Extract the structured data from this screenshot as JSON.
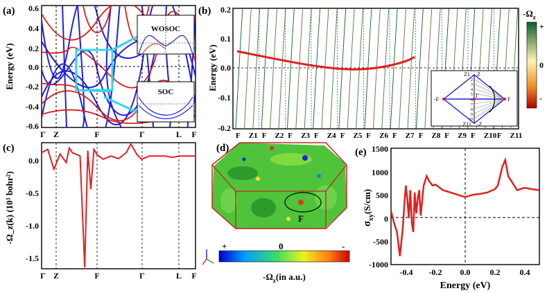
{
  "figure": {
    "panels": {
      "a": {
        "label": "(a)",
        "ylabel": "Energy (eV)",
        "yticks": [
          "0.6",
          "0.4",
          "0.2",
          "0.0",
          "-0.2",
          "-0.4",
          "-0.6"
        ],
        "xticks": [
          "Γ",
          "Z",
          "F",
          "Γ",
          "L",
          "F"
        ],
        "inset_top": "WOSOC",
        "inset_bottom": "SOC"
      },
      "b": {
        "label": "(b)",
        "ylabel": "Energy (eV)",
        "yticks": [
          "0.2",
          "0.1",
          "0.0",
          "-0.1",
          "-0.2"
        ],
        "xticks": [
          "F",
          "Z1",
          "F",
          "Z2",
          "F",
          "Z3",
          "F",
          "Z4",
          "F",
          "Z5",
          "F",
          "Z6",
          "F",
          "Z7",
          "F",
          "Z8",
          "F",
          "Z9",
          "F",
          "Z10",
          "F",
          "Z11"
        ],
        "colorbar_title": "-Ω",
        "colorbar_sub": "z",
        "colorbar_labels": [
          "+",
          "0",
          "-"
        ],
        "bz_labels": {
          "z1": "Z1",
          "z": "Z",
          "z11": "Z11",
          "mz": "-Z",
          "mf": "-F",
          "f": "F",
          "g": "Γ",
          "nums": [
            "2",
            "3",
            "4",
            "5",
            "6",
            "7",
            "8",
            "9",
            "10"
          ]
        }
      },
      "c": {
        "label": "(c)",
        "ylabel": "-Ω_z(k) (10³ bohr²)",
        "yticks": [
          "0.0",
          "-0.5",
          "-1.0",
          "-1.5"
        ],
        "xticks": [
          "Γ",
          "Z",
          "F",
          "Γ",
          "L",
          "F"
        ]
      },
      "d": {
        "label": "(d)",
        "point_label": "F",
        "colorbar_labels": [
          "+",
          "0",
          "-"
        ],
        "colorbar_title": "-Ω",
        "colorbar_sub": "z",
        "colorbar_unit": "(in a.u.)"
      },
      "e": {
        "label": "(e)",
        "ylabel": "σ",
        "ylabel_sub": "xy",
        "ylabel_unit": "(S/cm)",
        "xlabel": "Energy (eV)",
        "yticks": [
          "1500",
          "1000",
          "500",
          "0",
          "-500",
          "-1000"
        ],
        "xticks": [
          "-0.4",
          "-0.2",
          "0.0",
          "0.2",
          "0.4"
        ]
      }
    },
    "colors": {
      "blue_bands": "#1f1fe0",
      "red_bands": "#dd1a1a",
      "highlight": "#33d6e8",
      "berry_curve": "#e02020",
      "dark_green": "#0b5e2a"
    }
  },
  "chart_data": [
    {
      "type": "line",
      "title": "(c)",
      "ylabel": "-Ω_z(k) (10³ bohr²)",
      "ylim": [
        -1.7,
        0.2
      ],
      "x": [
        0.0,
        0.04,
        0.06,
        0.08,
        0.12,
        0.16,
        0.18,
        0.2,
        0.25,
        0.28,
        0.3,
        0.32,
        0.34,
        0.36,
        0.4,
        0.45,
        0.5,
        0.55,
        0.58,
        0.6,
        0.62,
        0.65,
        0.7,
        0.75,
        0.8,
        0.85,
        0.9,
        1.0
      ],
      "series": [
        {
          "name": "Berry curvature",
          "values": [
            0.05,
            0.1,
            -0.05,
            -0.2,
            0.03,
            -0.1,
            0.12,
            0.05,
            0.0,
            -1.68,
            0.08,
            -0.5,
            0.1,
            0.02,
            -0.05,
            0.0,
            -0.04,
            0.05,
            0.18,
            0.1,
            0.02,
            -0.05,
            0.0,
            0.0,
            0.0,
            -0.02,
            0.0,
            0.0
          ]
        }
      ]
    },
    {
      "type": "line",
      "title": "(e)",
      "xlabel": "Energy (eV)",
      "ylabel": "σxy (S/cm)",
      "xlim": [
        -0.5,
        0.5
      ],
      "ylim": [
        -1000,
        1500
      ],
      "x": [
        -0.5,
        -0.48,
        -0.46,
        -0.45,
        -0.44,
        -0.42,
        -0.41,
        -0.4,
        -0.39,
        -0.38,
        -0.37,
        -0.36,
        -0.35,
        -0.34,
        -0.33,
        -0.32,
        -0.31,
        -0.3,
        -0.28,
        -0.26,
        -0.24,
        -0.22,
        -0.2,
        -0.15,
        -0.1,
        -0.05,
        0.0,
        0.05,
        0.1,
        0.15,
        0.2,
        0.22,
        0.25,
        0.27,
        0.29,
        0.32,
        0.35,
        0.4,
        0.45,
        0.5
      ],
      "series": [
        {
          "name": "σxy",
          "values": [
            150,
            -100,
            -300,
            -550,
            -820,
            -200,
            300,
            700,
            400,
            0,
            600,
            -100,
            -300,
            550,
            100,
            400,
            600,
            50,
            700,
            900,
            780,
            700,
            720,
            600,
            550,
            500,
            450,
            500,
            520,
            550,
            620,
            700,
            1100,
            1250,
            900,
            750,
            600,
            650,
            620,
            600
          ]
        }
      ]
    }
  ]
}
